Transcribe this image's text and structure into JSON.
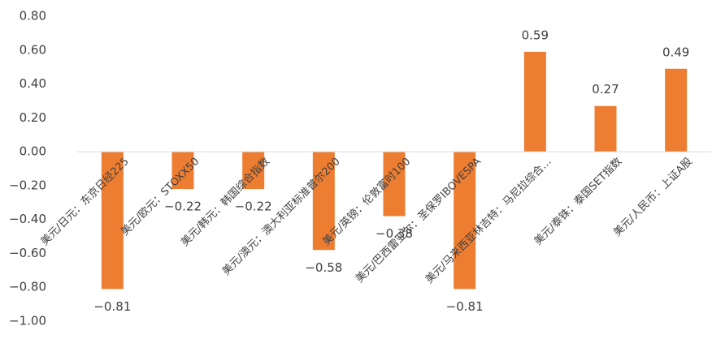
{
  "chart_data": {
    "type": "bar",
    "categories": [
      "美元/日元：东京日经225",
      "美元/欧元：STOXX50",
      "美元/韩元：韩国综合指数",
      "美元/澳元：澳大利亚标准普尔200",
      "美元/英镑：伦敦富时100",
      "美元/巴西雷亚尔：圣保罗IBOVESPA",
      "美元/马来西亚林吉特：马尼拉综合…",
      "美元/泰铢：泰国SET指数",
      "美元/人民币：上证A股"
    ],
    "values": [
      -0.81,
      -0.22,
      -0.22,
      -0.58,
      -0.38,
      -0.81,
      0.59,
      0.27,
      0.49
    ],
    "value_labels": [
      "−0.81",
      "−0.22",
      "−0.22",
      "−0.58",
      "−0.38",
      "−0.81",
      "0.59",
      "0.27",
      "0.49"
    ],
    "color": "#ED7D31",
    "ylim": [
      -1.0,
      0.8
    ],
    "yticks": [
      {
        "value": -1.0,
        "label": "−1.00"
      },
      {
        "value": -0.8,
        "label": "−0.80"
      },
      {
        "value": -0.6,
        "label": "−0.60"
      },
      {
        "value": -0.4,
        "label": "−0.40"
      },
      {
        "value": -0.2,
        "label": "−0.20"
      },
      {
        "value": 0,
        "label": "0.00"
      },
      {
        "value": 0.2,
        "label": "0.20"
      },
      {
        "value": 0.4,
        "label": "0.40"
      },
      {
        "value": 0.6,
        "label": "0.60"
      },
      {
        "value": 0.8,
        "label": "0.80"
      }
    ]
  }
}
